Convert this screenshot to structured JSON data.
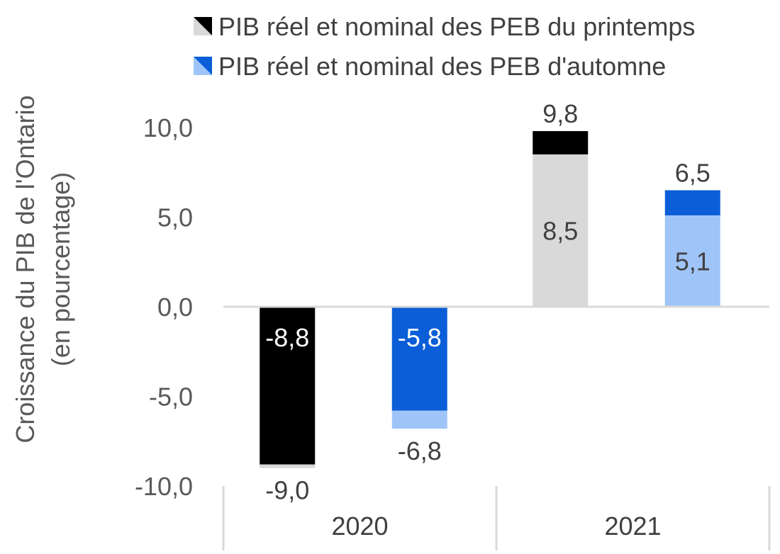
{
  "chart_data": {
    "type": "bar",
    "categories": [
      "2020",
      "2021"
    ],
    "ylabel_lines": [
      "Croissance du PIB de l'Ontario",
      "(en pourcentage)"
    ],
    "ylim": [
      -10,
      10
    ],
    "yticks": [
      10,
      5,
      0,
      -5,
      -10
    ],
    "ytick_labels": [
      "10,0",
      "5,0",
      "0,0",
      "-5,0",
      "-10,0"
    ],
    "legend_position": "top",
    "series": [
      {
        "name": "PIB réel et nominal des PEB du printemps",
        "real": [
          -8.8,
          8.5
        ],
        "nominal": [
          -9.0,
          9.8
        ],
        "real_labels": [
          "-8,8",
          "8,5"
        ],
        "nominal_labels": [
          "-9,0",
          "9,8"
        ],
        "colors": {
          "dark": "#000000",
          "light": "#d9d9d9"
        }
      },
      {
        "name": "PIB réel et nominal des PEB d'automne",
        "real": [
          -5.8,
          5.1
        ],
        "nominal": [
          -6.8,
          6.5
        ],
        "real_labels": [
          "-5,8",
          "5,1"
        ],
        "nominal_labels": [
          "-6,8",
          "6,5"
        ],
        "colors": {
          "dark": "#0b5ed7",
          "light": "#9fc5f8"
        }
      }
    ],
    "grid": false
  }
}
